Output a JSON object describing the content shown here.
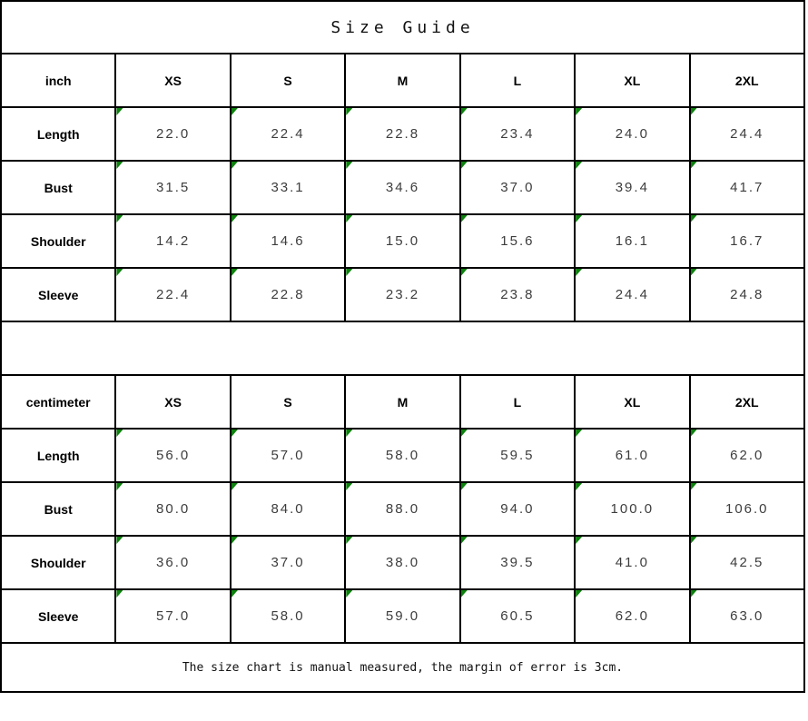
{
  "title": "Size Guide",
  "footer_note": "The size chart is manual measured, the margin of error is 3cm.",
  "colors": {
    "background": "#ffffff",
    "border": "#000000",
    "marker_green": "#0e820e",
    "label_text": "#000000",
    "value_text": "#3d3d3d"
  },
  "tables": [
    {
      "unit_label": "inch",
      "columns": [
        "XS",
        "S",
        "M",
        "L",
        "XL",
        "2XL"
      ],
      "rows": [
        {
          "label": "Length",
          "values": [
            "22.0",
            "22.4",
            "22.8",
            "23.4",
            "24.0",
            "24.4"
          ]
        },
        {
          "label": "Bust",
          "values": [
            "31.5",
            "33.1",
            "34.6",
            "37.0",
            "39.4",
            "41.7"
          ]
        },
        {
          "label": "Shoulder",
          "values": [
            "14.2",
            "14.6",
            "15.0",
            "15.6",
            "16.1",
            "16.7"
          ]
        },
        {
          "label": "Sleeve",
          "values": [
            "22.4",
            "22.8",
            "23.2",
            "23.8",
            "24.4",
            "24.8"
          ]
        }
      ]
    },
    {
      "unit_label": "centimeter",
      "columns": [
        "XS",
        "S",
        "M",
        "L",
        "XL",
        "2XL"
      ],
      "rows": [
        {
          "label": "Length",
          "values": [
            "56.0",
            "57.0",
            "58.0",
            "59.5",
            "61.0",
            "62.0"
          ]
        },
        {
          "label": "Bust",
          "values": [
            "80.0",
            "84.0",
            "88.0",
            "94.0",
            "100.0",
            "106.0"
          ]
        },
        {
          "label": "Shoulder",
          "values": [
            "36.0",
            "37.0",
            "38.0",
            "39.5",
            "41.0",
            "42.5"
          ]
        },
        {
          "label": "Sleeve",
          "values": [
            "57.0",
            "58.0",
            "59.0",
            "60.5",
            "62.0",
            "63.0"
          ]
        }
      ]
    }
  ]
}
